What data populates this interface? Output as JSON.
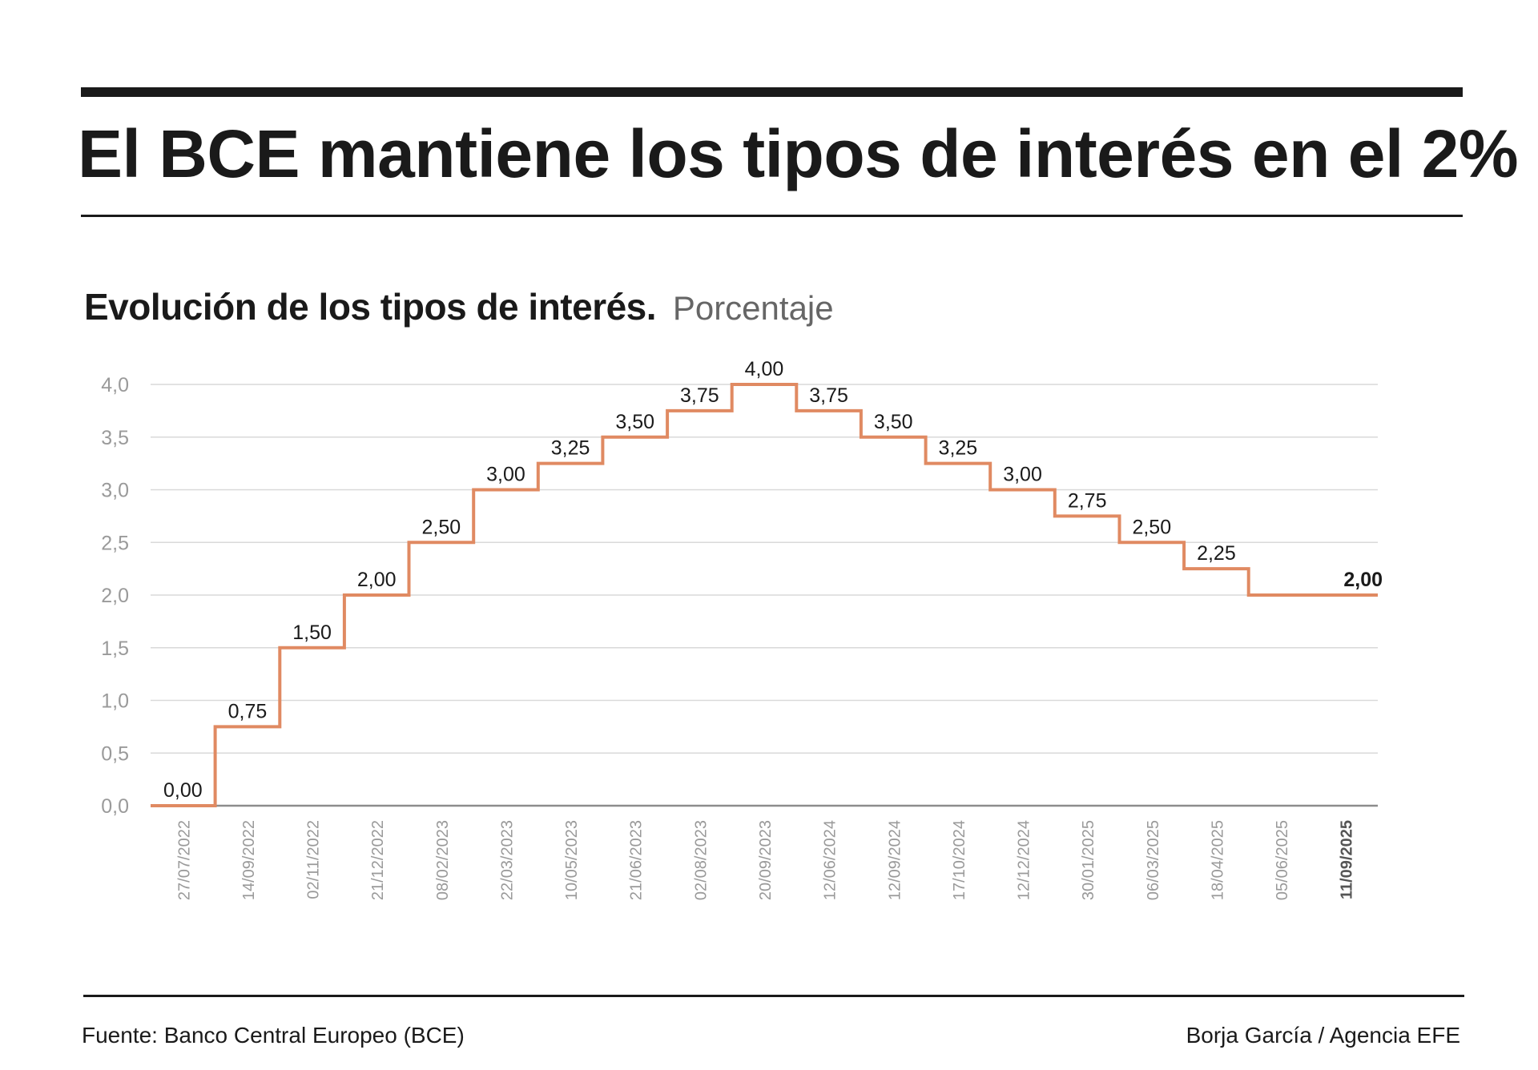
{
  "header": {
    "title": "El BCE mantiene los tipos de interés en el 2%"
  },
  "chart_header": {
    "title": "Evolución de los tipos de interés.",
    "unit": "Porcentaje"
  },
  "footer": {
    "source": "Fuente: Banco Central Europeo (BCE)",
    "credit": "Borja García / Agencia EFE"
  },
  "colors": {
    "line": "#e08a62",
    "grid": "#d9d9d9",
    "axis_text": "#9a9a9a",
    "label_text": "#1a1a1a"
  },
  "chart_data": {
    "type": "line",
    "step": true,
    "title": "Evolución de los tipos de interés.",
    "subtitle": "Porcentaje",
    "x": [
      "27/07/2022",
      "14/09/2022",
      "02/11/2022",
      "21/12/2022",
      "08/02/2023",
      "22/03/2023",
      "10/05/2023",
      "21/06/2023",
      "02/08/2023",
      "20/09/2023",
      "12/06/2024",
      "12/09/2024",
      "17/10/2024",
      "12/12/2024",
      "30/01/2025",
      "06/03/2025",
      "18/04/2025",
      "05/06/2025",
      "11/09/2025"
    ],
    "series": [
      {
        "values": [
          0.0,
          0.75,
          1.5,
          2.0,
          2.5,
          3.0,
          3.25,
          3.5,
          3.75,
          4.0,
          3.75,
          3.5,
          3.25,
          3.0,
          2.75,
          2.5,
          2.25,
          2.0,
          2.0
        ]
      }
    ],
    "data_labels": [
      "0,00",
      "0,75",
      "1,50",
      "2,00",
      "2,50",
      "3,00",
      "3,25",
      "3,50",
      "3,75",
      "4,00",
      "3,75",
      "3,50",
      "3,25",
      "3,00",
      "2,75",
      "2,50",
      "2,25",
      "",
      "2,00"
    ],
    "bold_label_index": 18,
    "bold_tick_index": 18,
    "y_ticks": [
      "0,0",
      "0,5",
      "1,0",
      "1,5",
      "2,0",
      "2,5",
      "3,0",
      "3,5",
      "4,0"
    ],
    "ylim": [
      0,
      4
    ],
    "grid": true,
    "xlabel": "",
    "ylabel": ""
  }
}
